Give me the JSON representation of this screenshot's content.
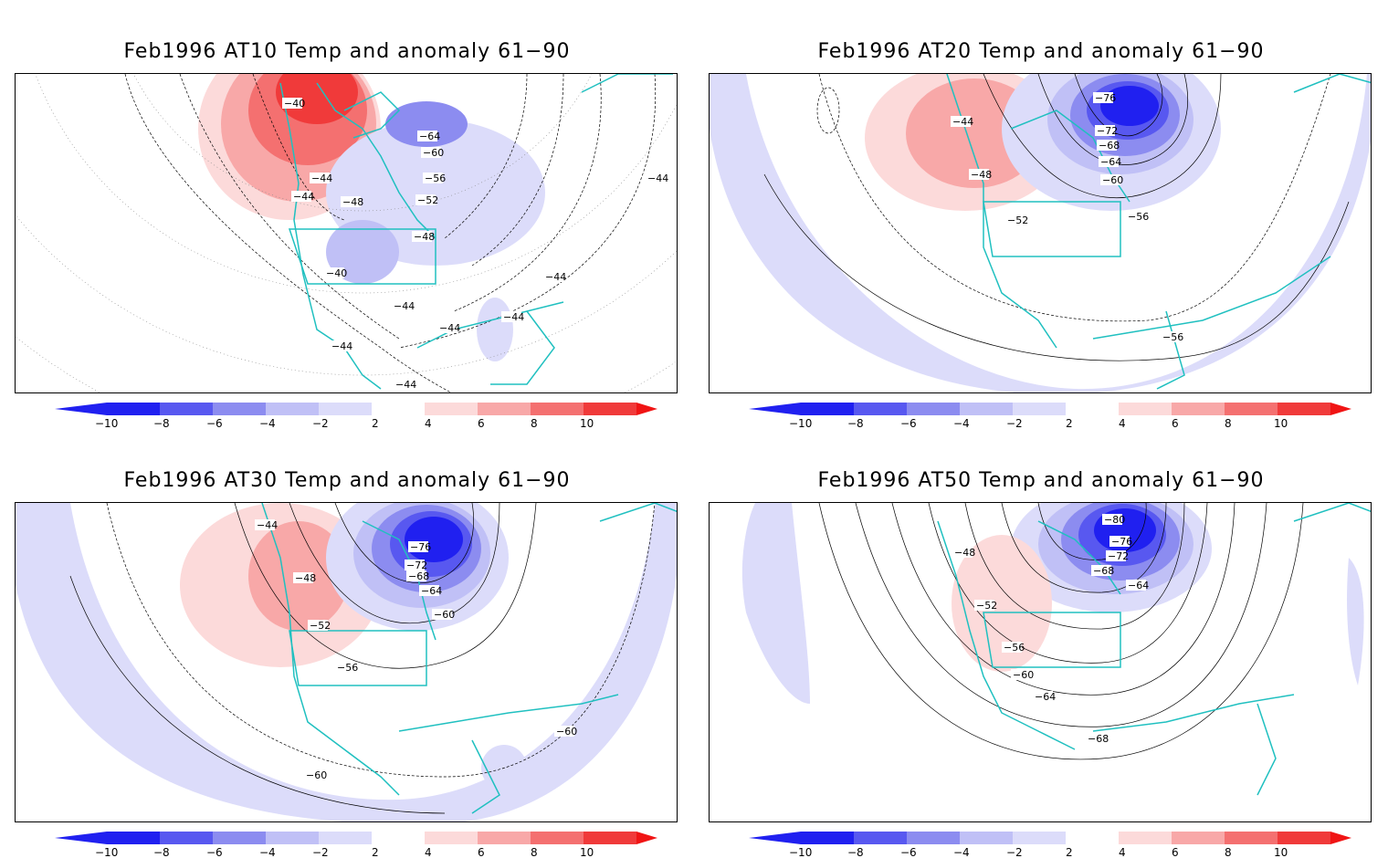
{
  "palette": {
    "neg": [
      "#2020f0",
      "#5858f0",
      "#8c8cf0",
      "#c0c0f6",
      "#dcdcfa"
    ],
    "pos": [
      "#fcdada",
      "#f8a8a8",
      "#f47070",
      "#f03a3a",
      "#f01414"
    ],
    "coast": "#20c0c0",
    "contour": "#000000",
    "grid": "#888888"
  },
  "colorbar": {
    "ticks": [
      "−10",
      "−8",
      "−6",
      "−4",
      "−2",
      "2",
      "4",
      "6",
      "8",
      "10"
    ]
  },
  "panels": [
    {
      "title": "Feb1996 AT10 Temp and anomaly 61−90",
      "contour_labels": [
        "−40",
        "−44",
        "−44",
        "−48",
        "−64",
        "−60",
        "−56",
        "−52",
        "−48",
        "−40",
        "−44",
        "−44",
        "−44",
        "−44",
        "−44",
        "−44",
        "−44"
      ],
      "anomaly": {
        "warm_max": 10,
        "cold_min": -6
      }
    },
    {
      "title": "Feb1996 AT20 Temp and anomaly 61−90",
      "contour_labels": [
        "−76",
        "−72",
        "−68",
        "−64",
        "−60",
        "−44",
        "−48",
        "−52",
        "−56",
        "−56"
      ],
      "anomaly": {
        "warm_max": 4,
        "cold_min": -10
      }
    },
    {
      "title": "Feb1996 AT30 Temp and anomaly 61−90",
      "contour_labels": [
        "−44",
        "−48",
        "−52",
        "−56",
        "−76",
        "−72",
        "−68",
        "−64",
        "−60",
        "−60",
        "−60"
      ],
      "anomaly": {
        "warm_max": 4,
        "cold_min": -10
      }
    },
    {
      "title": "Feb1996 AT50 Temp and anomaly 61−90",
      "contour_labels": [
        "−80",
        "−76",
        "−72",
        "−68",
        "−64",
        "−48",
        "−52",
        "−56",
        "−60",
        "−64",
        "−68"
      ],
      "anomaly": {
        "warm_max": 2,
        "cold_min": -10
      }
    }
  ]
}
